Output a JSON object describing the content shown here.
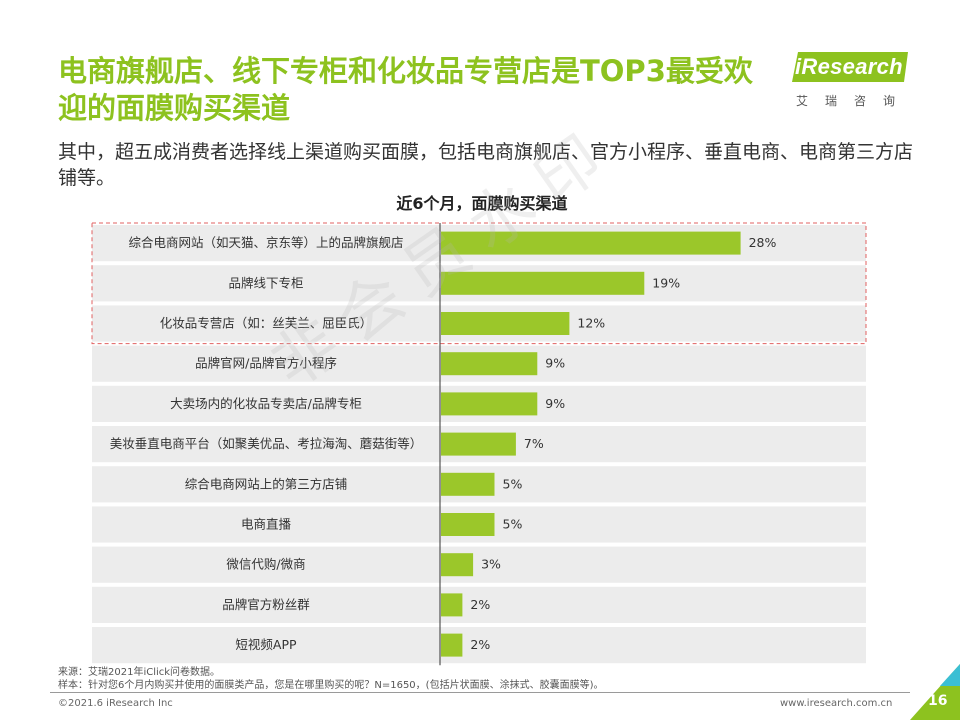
{
  "title": "电商旗舰店、线下专柜和化妆品专营店是TOP3最受欢迎的面膜购买渠道",
  "subtitle": "其中，超五成消费者选择线上渠道购买面膜，包括电商旗舰店、官方小程序、垂直电商、电商第三方店铺等。",
  "logo": {
    "name": "iResearch",
    "sub": "艾瑞咨询"
  },
  "watermark": "非会员水印",
  "chart_data": {
    "type": "bar",
    "orientation": "horizontal",
    "title": "近6个月，面膜购买渠道",
    "categories": [
      "综合电商网站（如天猫、京东等）上的品牌旗舰店",
      "品牌线下专柜",
      "化妆品专营店（如：丝芙兰、屈臣氏）",
      "品牌官网/品牌官方小程序",
      "大卖场内的化妆品专卖店/品牌专柜",
      "美妆垂直电商平台（如聚美优品、考拉海淘、蘑菇街等）",
      "综合电商网站上的第三方店铺",
      "电商直播",
      "微信代购/微商",
      "品牌官方粉丝群",
      "短视频APP"
    ],
    "values": [
      28,
      19,
      12,
      9,
      9,
      7,
      5,
      5,
      3,
      2,
      2
    ],
    "value_labels": [
      "28%",
      "19%",
      "12%",
      "9%",
      "9%",
      "7%",
      "5%",
      "5%",
      "3%",
      "2%",
      "2%"
    ],
    "unit": "%",
    "highlight_top": 3,
    "bar_color": "#9bc72a",
    "row_band_color": "#ececec",
    "highlight_border_color": "#e06060"
  },
  "footer": {
    "source": "来源：艾瑞2021年iClick问卷数据。",
    "sample": "样本：针对您6个月内购买并使用的面膜类产品，您是在哪里购买的呢？N=1650，(包括片状面膜、涂抹式、胶囊面膜等)。",
    "copyright": "©2021.6 iResearch Inc",
    "site": "www.iresearch.com.cn",
    "page": "16"
  },
  "colors": {
    "accent": "#8dc21f",
    "corner": "#8dc21f",
    "corner_secondary": "#3bbfd4"
  }
}
